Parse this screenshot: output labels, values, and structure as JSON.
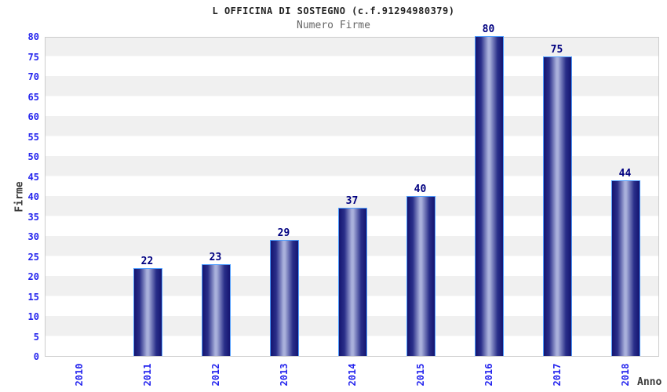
{
  "header": {
    "title": "L OFFICINA DI SOSTEGNO (c.f.91294980379)",
    "subtitle": "Numero Firme"
  },
  "chart_data": {
    "type": "bar",
    "title": "L OFFICINA DI SOSTEGNO (c.f.91294980379)",
    "subtitle": "Numero Firme",
    "xlabel": "Anno",
    "ylabel": "Firme",
    "categories": [
      "2010",
      "2011",
      "2012",
      "2013",
      "2014",
      "2015",
      "2016",
      "2017",
      "2018"
    ],
    "values": [
      0,
      22,
      23,
      29,
      37,
      40,
      80,
      75,
      44
    ],
    "ylim": [
      0,
      80
    ],
    "yticks": [
      0,
      5,
      10,
      15,
      20,
      25,
      30,
      35,
      40,
      45,
      50,
      55,
      60,
      65,
      70,
      75,
      80
    ],
    "grid": "alternating-horizontal-bands",
    "legend_position": "none",
    "colors": {
      "title": "#222222",
      "subtitle": "#666666",
      "tick_label": "#2424ee",
      "value_label": "#000080",
      "axis_title": "#3a3a3a",
      "band_gray": "#f0f0f0",
      "plot_border": "#cccccc",
      "bar_dark": "#141470",
      "bar_mid": "#2a2f8a",
      "bar_highlight": "#a9b0db",
      "bar_border": "#4e9eff"
    }
  }
}
